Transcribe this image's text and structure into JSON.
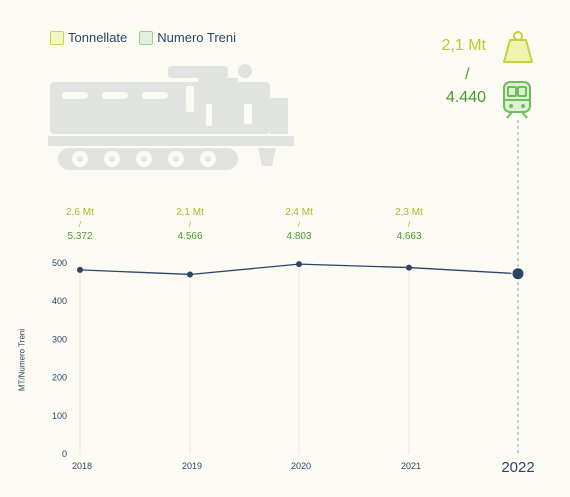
{
  "legend": {
    "items": [
      {
        "label": "Tonnellate",
        "color": "#c9d84a",
        "fill": "#f2f6c8"
      },
      {
        "label": "Numero Treni",
        "color": "#9fcf8e",
        "fill": "#e2f2dc"
      }
    ]
  },
  "highlight": {
    "tonnes": "2,1 Mt",
    "slash": "/",
    "trains": "4.440"
  },
  "annotations": [
    {
      "tonnes": "2,6 Mt",
      "slash": "/",
      "trains": "5.372"
    },
    {
      "tonnes": "2,1 Mt",
      "slash": "/",
      "trains": "4.566"
    },
    {
      "tonnes": "2,4 Mt",
      "slash": "/",
      "trains": "4.803"
    },
    {
      "tonnes": "2,3 Mt",
      "slash": "/",
      "trains": "4.663"
    }
  ],
  "icons": {
    "weight": "weight-icon",
    "train": "train-icon",
    "illustration": "locomotive-illustration"
  },
  "chart_data": {
    "type": "line",
    "categories": [
      "2018",
      "2019",
      "2020",
      "2021",
      "2022"
    ],
    "values": [
      482,
      470,
      497,
      488,
      472
    ],
    "ylabel": "MT/Numero Treni",
    "yticks": [
      0,
      100,
      200,
      300,
      400,
      500
    ],
    "ylim": [
      0,
      500
    ],
    "highlighted_category": "2022",
    "grid": false,
    "line_color": "#2c4565"
  }
}
